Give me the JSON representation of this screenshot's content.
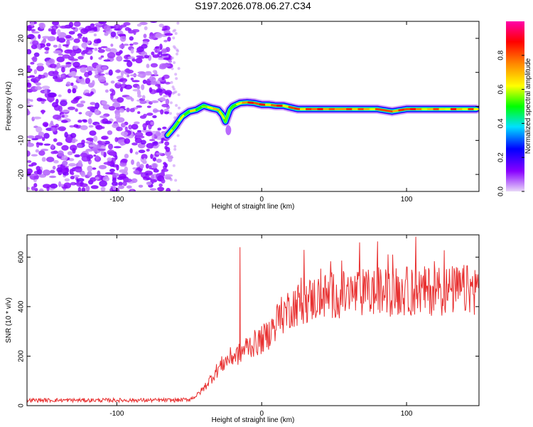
{
  "figure_title": "S197.2026.078.06.27.C34",
  "chart_data": [
    {
      "type": "heatmap",
      "title": "S197.2026.078.06.27.C34",
      "xlabel": "Height of straight line (km)",
      "ylabel": "Frequency (Hz)",
      "xlim": [
        -162,
        150
      ],
      "ylim": [
        -25,
        25
      ],
      "xticks": [
        "-100",
        "0",
        "100"
      ],
      "yticks": [
        "-20",
        "-10",
        "0",
        "10",
        "20"
      ],
      "noise_region_x": [
        -162,
        -63
      ],
      "signal_track": {
        "x": [
          -65,
          -60,
          -55,
          -50,
          -45,
          -40,
          -35,
          -30,
          -27,
          -25,
          -22,
          -20,
          -15,
          -10,
          -5,
          0,
          5,
          10,
          15,
          20,
          25,
          30,
          40,
          50,
          60,
          70,
          80,
          90,
          100,
          110,
          120,
          130,
          140,
          148
        ],
        "frequency": [
          -8.5,
          -6,
          -3,
          -1.5,
          -1,
          0.2,
          -0.5,
          -1,
          -2.5,
          -4.5,
          -1,
          0,
          1,
          1.2,
          1,
          0.5,
          0.5,
          0.2,
          0.2,
          -0.3,
          -0.8,
          -0.8,
          -0.8,
          -0.8,
          -0.8,
          -0.8,
          -0.8,
          -1.5,
          -0.8,
          -0.8,
          -0.8,
          -0.8,
          -0.8,
          -0.8
        ]
      },
      "colorbar": {
        "label": "Normalized spectral amplitude",
        "range": [
          0,
          1
        ],
        "ticks": [
          "0.0",
          "0.2",
          "0.4",
          "0.6",
          "0.8"
        ],
        "colors": [
          "#e8d8f8",
          "#8800ff",
          "#0000ff",
          "#00e0ff",
          "#00ff00",
          "#ffff00",
          "#ff8800",
          "#ff0000",
          "#ff00aa"
        ]
      }
    },
    {
      "type": "line",
      "xlabel": "Height of straight line (km)",
      "ylabel": "SNR (10 * v/v)",
      "xlim": [
        -162,
        150
      ],
      "ylim": [
        0,
        690
      ],
      "xticks": [
        "-100",
        "0",
        "100"
      ],
      "yticks": [
        "0",
        "200",
        "400",
        "600"
      ],
      "series": [
        {
          "name": "SNR",
          "color": "#e83030",
          "x": [
            -162,
            -140,
            -120,
            -100,
            -80,
            -60,
            -50,
            -45,
            -40,
            -35,
            -30,
            -25,
            -20,
            -15,
            -10,
            -5,
            0,
            5,
            10,
            15,
            20,
            30,
            40,
            50,
            60,
            70,
            80,
            90,
            100,
            110,
            120,
            130,
            140,
            150
          ],
          "values": [
            22,
            22,
            22,
            22,
            22,
            22,
            25,
            40,
            70,
            110,
            150,
            180,
            200,
            210,
            240,
            250,
            265,
            290,
            340,
            370,
            400,
            420,
            440,
            445,
            450,
            455,
            458,
            460,
            462,
            462,
            465,
            465,
            468,
            470
          ],
          "spikes": [
            {
              "x": -15,
              "value": 640
            }
          ]
        }
      ]
    }
  ]
}
